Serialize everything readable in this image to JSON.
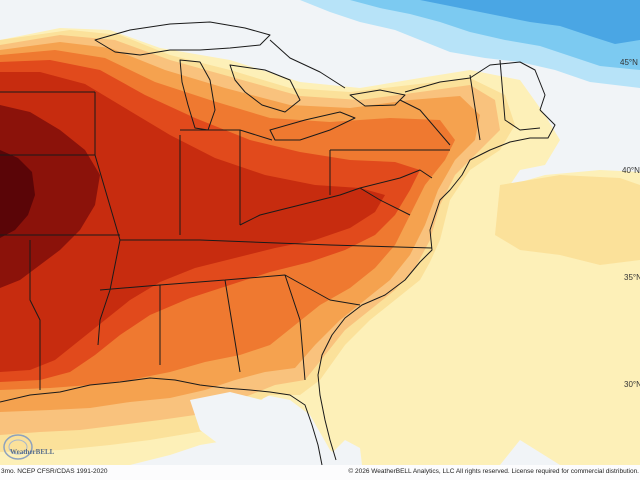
{
  "map": {
    "lat_labels": [
      "45°N",
      "40°N",
      "35°N",
      "30°N"
    ],
    "footer_left": "3mo. NCEP CFSR/CDAS 1991-2020",
    "footer_right": "© 2026 WeatherBELL Analytics, LLC All rights reserved. License required for commercial distribution.",
    "logo_text": "WeatherBELL"
  },
  "colors": {
    "ocean_neutral": "#f1f4f7",
    "light_yellow": "#fdf0b8",
    "yellow": "#fbe19a",
    "light_orange": "#f9c27d",
    "orange": "#f5a24f",
    "dark_orange": "#ef7930",
    "red_orange": "#e14a1c",
    "red": "#c72c0f",
    "dark_red": "#8b120a",
    "deepest_red": "#5a0507",
    "light_blue": "#b7e3f8",
    "blue": "#7ccaf1",
    "medium_blue": "#4aa6e4",
    "coast_line": "#1a1a1a"
  }
}
